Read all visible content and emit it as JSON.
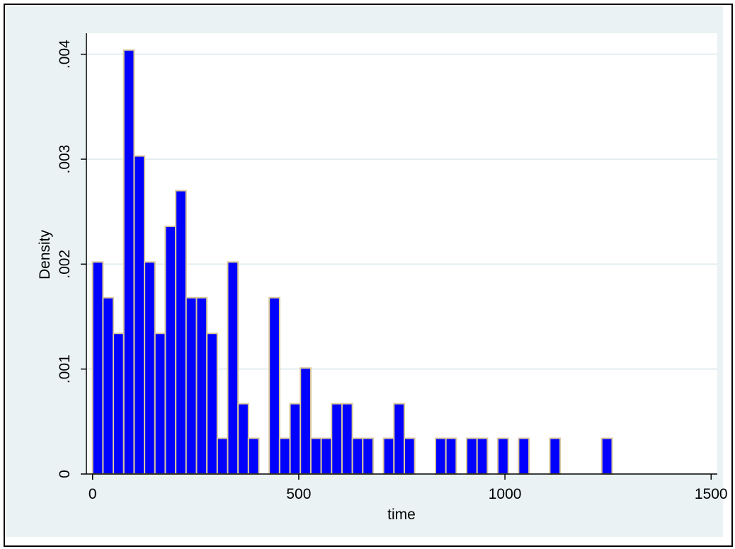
{
  "chart_data": {
    "type": "bar",
    "subtype": "histogram",
    "xlabel": "time",
    "ylabel": "Density",
    "xlim": [
      -15,
      1515
    ],
    "ylim": [
      0,
      0.0042
    ],
    "xticks": [
      0,
      500,
      1000,
      1500
    ],
    "xtick_labels": [
      "0",
      "500",
      "1000",
      "1500"
    ],
    "yticks": [
      0,
      0.001,
      0.002,
      0.003,
      0.004
    ],
    "ytick_labels": [
      "0",
      ".001",
      ".002",
      ".003",
      ".004"
    ],
    "grid": true,
    "bin_width": 25.2,
    "bin_start": 0,
    "bins": [
      {
        "start": 0.0,
        "density": 0.00202
      },
      {
        "start": 25.2,
        "density": 0.00168
      },
      {
        "start": 50.4,
        "density": 0.00134
      },
      {
        "start": 75.6,
        "density": 0.00404
      },
      {
        "start": 100.8,
        "density": 0.00303
      },
      {
        "start": 126.0,
        "density": 0.00202
      },
      {
        "start": 151.2,
        "density": 0.00134
      },
      {
        "start": 176.4,
        "density": 0.00236
      },
      {
        "start": 201.6,
        "density": 0.0027
      },
      {
        "start": 226.8,
        "density": 0.00168
      },
      {
        "start": 252.0,
        "density": 0.00168
      },
      {
        "start": 277.2,
        "density": 0.00134
      },
      {
        "start": 302.4,
        "density": 0.00034
      },
      {
        "start": 327.6,
        "density": 0.00202
      },
      {
        "start": 352.8,
        "density": 0.00067
      },
      {
        "start": 378.0,
        "density": 0.00034
      },
      {
        "start": 428.4,
        "density": 0.00168
      },
      {
        "start": 453.6,
        "density": 0.00034
      },
      {
        "start": 478.8,
        "density": 0.00067
      },
      {
        "start": 504.0,
        "density": 0.00101
      },
      {
        "start": 529.2,
        "density": 0.00034
      },
      {
        "start": 554.4,
        "density": 0.00034
      },
      {
        "start": 579.6,
        "density": 0.00067
      },
      {
        "start": 604.8,
        "density": 0.00067
      },
      {
        "start": 630.0,
        "density": 0.00034
      },
      {
        "start": 655.2,
        "density": 0.00034
      },
      {
        "start": 705.6,
        "density": 0.00034
      },
      {
        "start": 730.8,
        "density": 0.00067
      },
      {
        "start": 756.0,
        "density": 0.00034
      },
      {
        "start": 831.6,
        "density": 0.00034
      },
      {
        "start": 856.8,
        "density": 0.00034
      },
      {
        "start": 907.2,
        "density": 0.00034
      },
      {
        "start": 932.4,
        "density": 0.00034
      },
      {
        "start": 982.8,
        "density": 0.00034
      },
      {
        "start": 1033.2,
        "density": 0.00034
      },
      {
        "start": 1108.8,
        "density": 0.00034
      },
      {
        "start": 1234.8,
        "density": 0.00034
      }
    ],
    "colors": {
      "bar_fill": "#0000ff",
      "bar_outline": "#d8c79a",
      "plot_background": "#ffffff",
      "outer_background": "#eaf2f3",
      "grid": "#e3edf0",
      "axis": "#000000"
    }
  }
}
